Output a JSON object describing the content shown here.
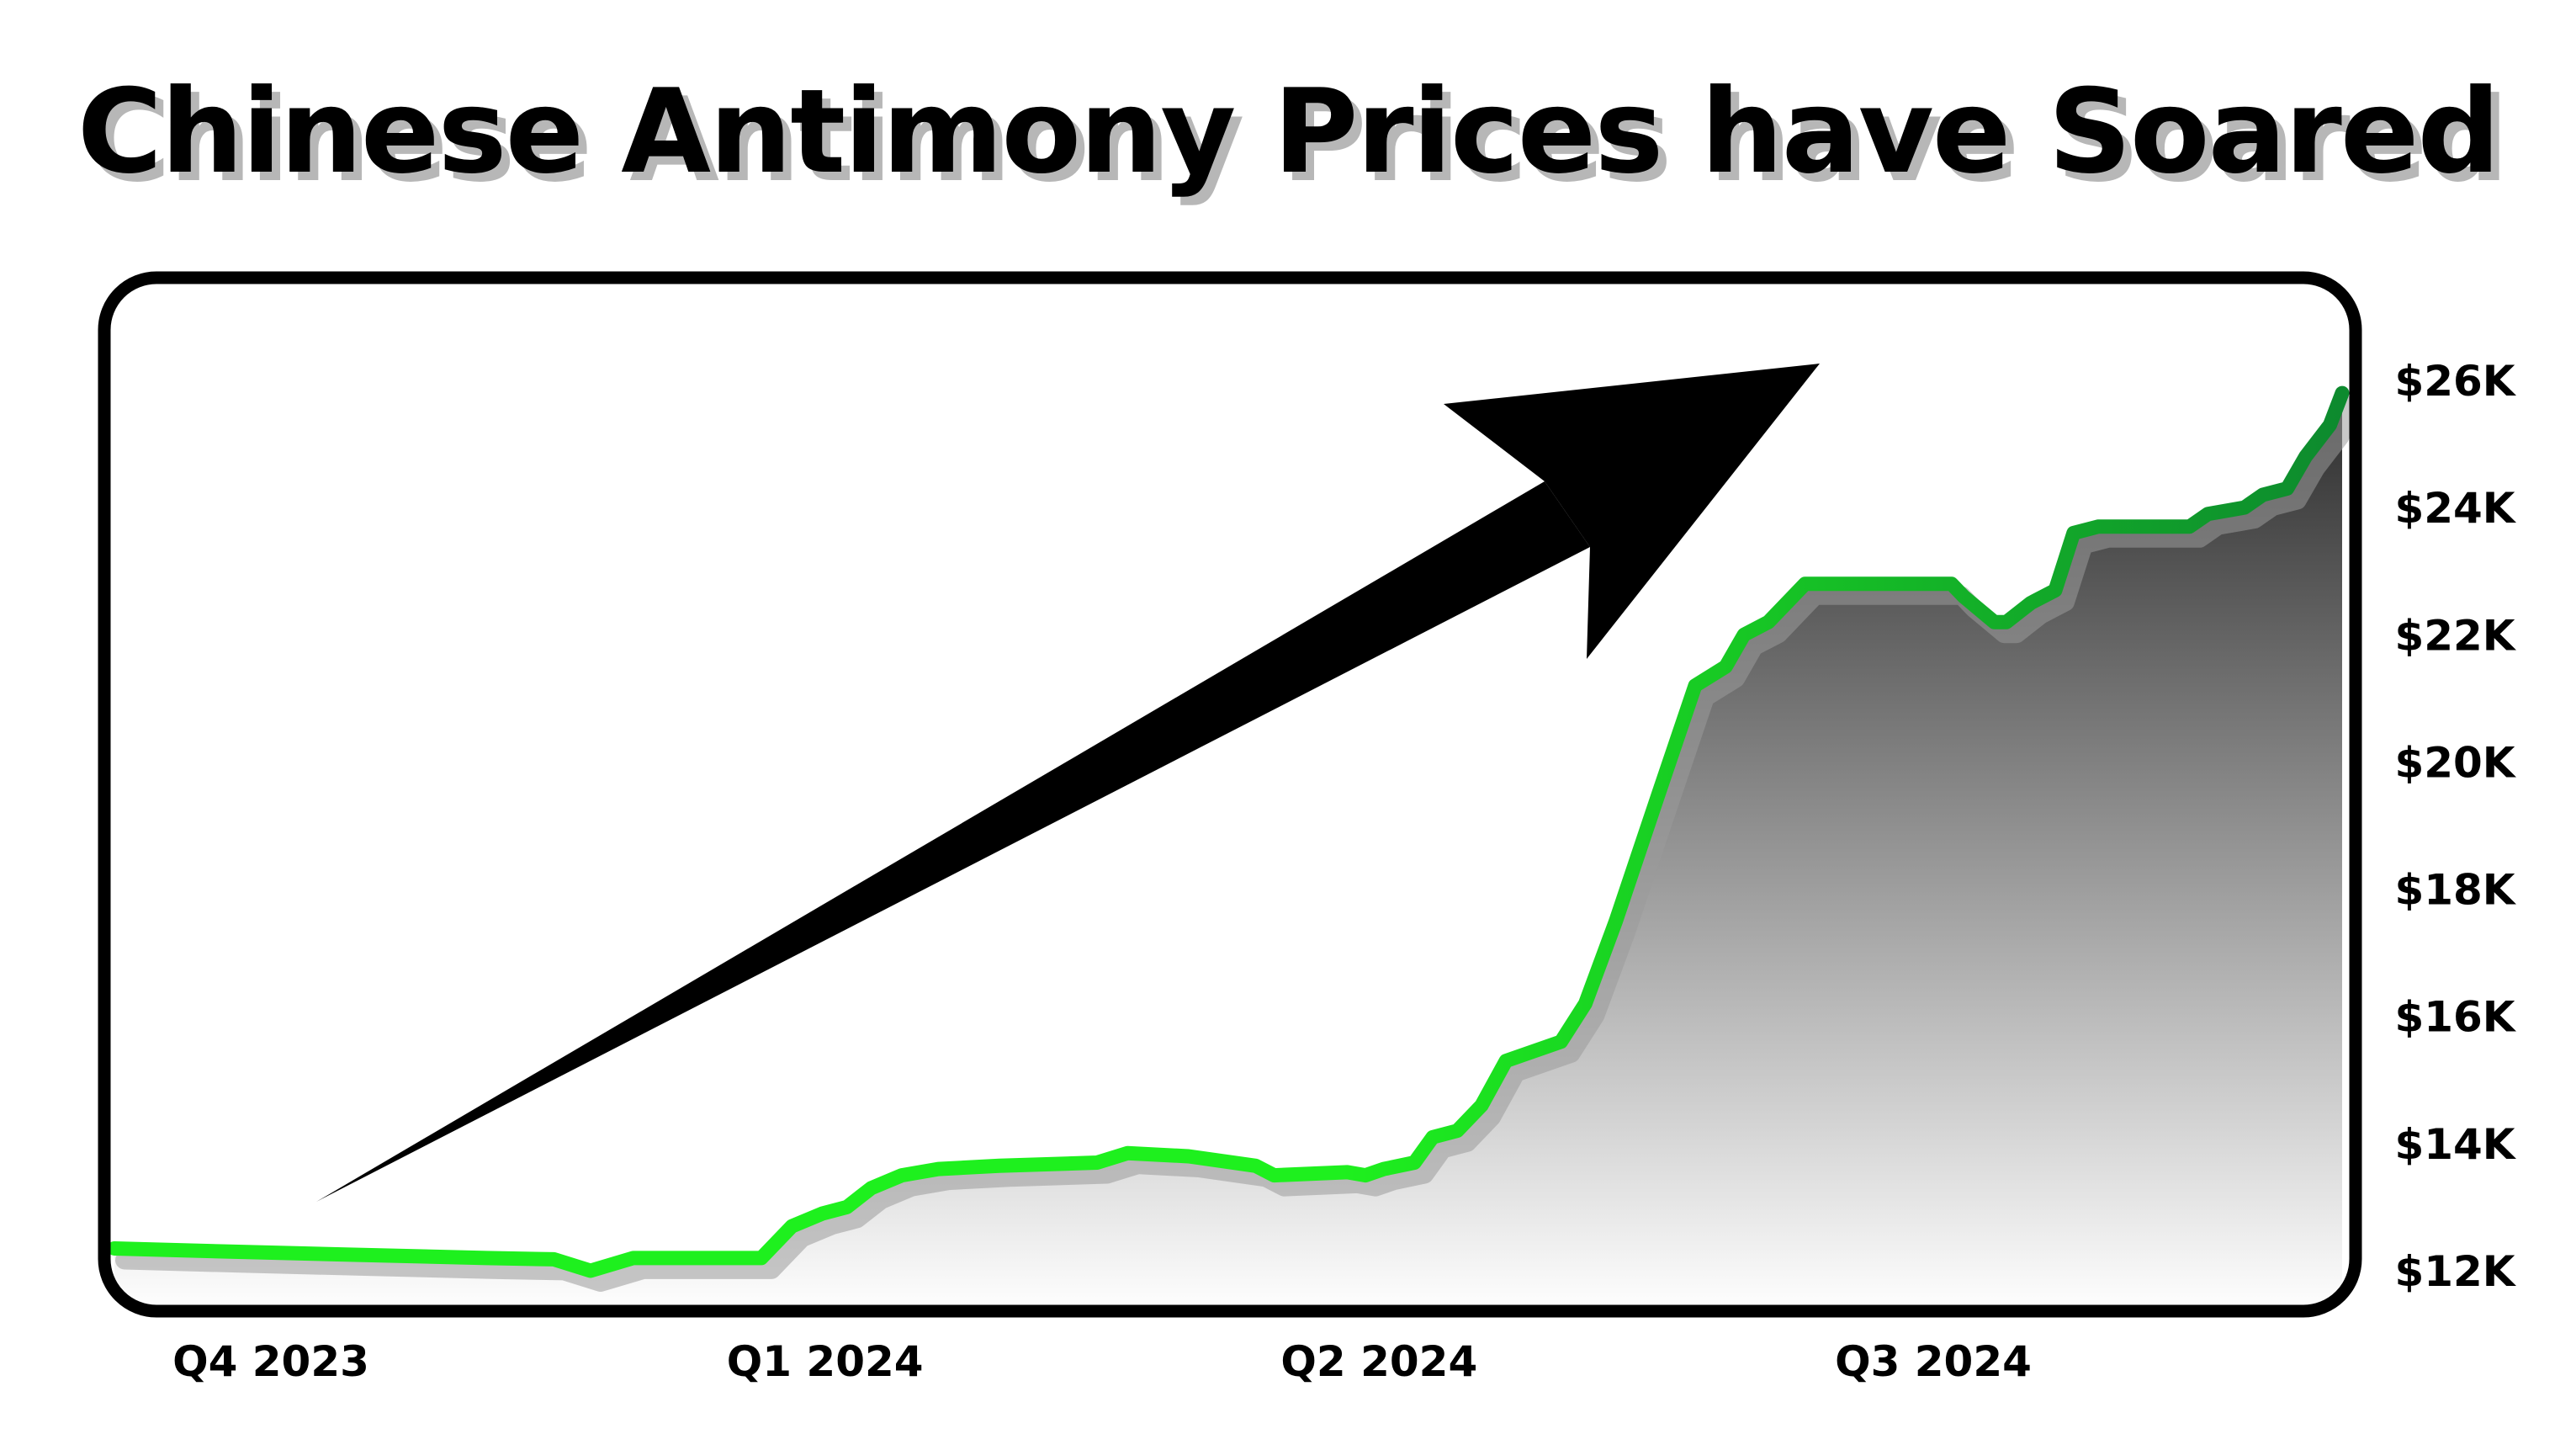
{
  "chart_data": {
    "type": "area",
    "title": "Chinese Antimony Prices have Soared",
    "xlabel": "",
    "ylabel": "",
    "x_ticks": [
      "Q4 2023",
      "Q1 2024",
      "Q2 2024",
      "Q3 2024"
    ],
    "y_ticks": [
      "$12K",
      "$14K",
      "$16K",
      "$18K",
      "$20K",
      "$22K",
      "$24K",
      "$26K"
    ],
    "y_tick_values": [
      12000,
      14000,
      16000,
      18000,
      20000,
      22000,
      24000,
      26000
    ],
    "ylim": [
      12000,
      26000
    ],
    "grid": false,
    "legend": "none",
    "annotation": "large black arrow pointing up and to the right",
    "x": [
      "2023-10-01",
      "2023-10-20",
      "2023-11-10",
      "2023-12-01",
      "2023-12-12",
      "2023-12-18",
      "2023-12-25",
      "2024-01-01",
      "2024-01-15",
      "2024-01-20",
      "2024-01-25",
      "2024-01-29",
      "2024-02-02",
      "2024-02-07",
      "2024-02-13",
      "2024-02-23",
      "2024-03-10",
      "2024-03-15",
      "2024-03-25",
      "2024-04-05",
      "2024-04-08",
      "2024-04-20",
      "2024-04-23",
      "2024-04-26",
      "2024-05-01",
      "2024-05-04",
      "2024-05-08",
      "2024-05-12",
      "2024-05-16",
      "2024-05-25",
      "2024-05-29",
      "2024-06-03",
      "2024-06-10",
      "2024-06-16",
      "2024-06-21",
      "2024-06-24",
      "2024-06-28",
      "2024-07-04",
      "2024-07-12",
      "2024-07-28",
      "2024-07-30",
      "2024-08-04",
      "2024-08-06",
      "2024-08-10",
      "2024-08-14",
      "2024-08-17",
      "2024-08-21",
      "2024-09-05",
      "2024-09-08",
      "2024-09-14",
      "2024-09-17",
      "2024-09-21",
      "2024-09-24",
      "2024-09-28",
      "2024-09-30"
    ],
    "series": [
      {
        "values": [
          12350,
          12300,
          12250,
          12200,
          12180,
          12000,
          12200,
          12200,
          12200,
          12700,
          12900,
          13000,
          13300,
          13500,
          13600,
          13650,
          13700,
          13850,
          13800,
          13650,
          13500,
          13550,
          13500,
          13600,
          13700,
          14100,
          14200,
          14600,
          15300,
          15600,
          16200,
          17500,
          19500,
          21200,
          21500,
          22000,
          22200,
          22800,
          22800,
          22800,
          22600,
          22200,
          22200,
          22500,
          22700,
          23600,
          23700,
          23700,
          23900,
          24000,
          24200,
          24300,
          24800,
          25300,
          25800
        ]
      }
    ],
    "colors": {
      "line_start": "#1ef01e",
      "line_end": "#0d8a2e",
      "area_top": "#2c2c2c",
      "area_bottom": "#ffffff",
      "frame": "#000000",
      "arrow": "#000000"
    }
  }
}
